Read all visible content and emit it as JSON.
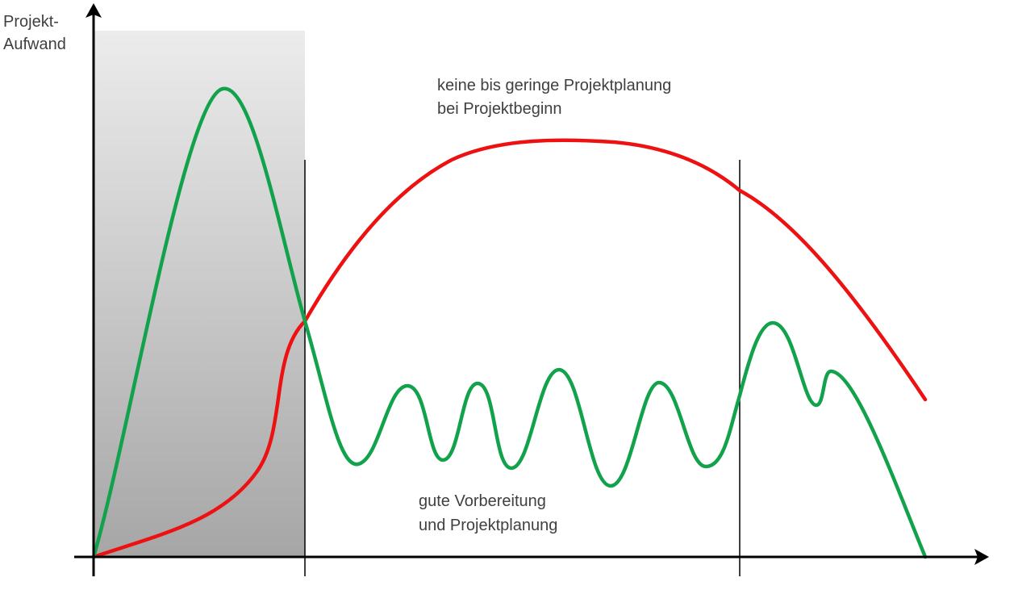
{
  "axis": {
    "y_label_line1": "Projekt-",
    "y_label_line2": "Aufwand"
  },
  "annotations": {
    "red_line1": "keine bis geringe Projektplanung",
    "red_line2": "bei Projektbeginn",
    "green_line1": "gute Vorbereitung",
    "green_line2": "und Projektplanung"
  },
  "colors": {
    "red_curve": "#ee1111",
    "green_curve": "#12a24c",
    "axis": "#000000",
    "shading_top": "#ececec",
    "shading_bottom": "#a6a6a6",
    "text": "#404040"
  }
}
